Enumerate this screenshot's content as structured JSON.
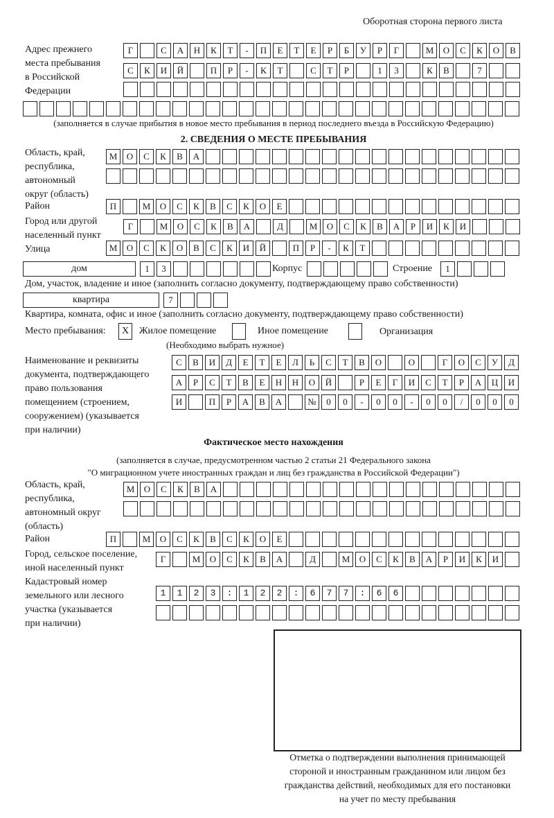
{
  "header": {
    "side_note": "Оборотная сторона первого листа"
  },
  "previous_address": {
    "label": "Адрес прежнего\nместа пребывания\nв Российской\nФедерации",
    "rows": [
      "Г САНКТ-ПЕТЕРБУРГ МОСКОВ",
      "СКИЙ ПР-КТ СТР 13 КВ 7",
      "",
      ""
    ],
    "note": "(заполняется в случае прибытия в новое место пребывания в период последнего въезда в Российскую Федерацию)"
  },
  "section2": {
    "heading": "2. СВЕДЕНИЯ О МЕСТЕ ПРЕБЫВАНИЯ",
    "region_label": "Область, край,\nреспублика,\nавтономный\nокруг (область)",
    "region_rows": [
      "МОСКВА",
      ""
    ],
    "district_label": "Район",
    "district": "П МОСКВСКОЕ",
    "city_label": "Город или другой\nнаселенный пункт",
    "city": "Г МОСКВА Д МОСКВАРИКИ",
    "street_label": "Улица",
    "street": "МОСКОВСКИЙ ПР-КТ",
    "house_type": "дом",
    "house": "13",
    "korpus_label": "Корпус",
    "korpus": "",
    "building_label": "Строение",
    "building": "1",
    "house_caption": "Дом, участок, владение и иное (заполнить согласно документу, подтверждающему право собственности)",
    "apartment_type": "квартира",
    "apartment": "7",
    "apartment_caption": "Квартира, комната, офис и иное (заполнить согласно документу, подтверждающему право собственности)",
    "stay_place_label": "Место пребывания:",
    "stay_options": [
      {
        "label": "Жилое помещение",
        "mark": "X",
        "checked": true
      },
      {
        "label": "Иное помещение",
        "mark": "",
        "checked": false
      },
      {
        "label": "Организация",
        "mark": "",
        "checked": false
      }
    ],
    "stay_hint": "(Необходимо выбрать нужное)",
    "doc_label": "Наименование и реквизиты\nдокумента, подтверждающего\nправо пользования\nпомещением (строением,\nсооружением) (указывается\nпри наличии)",
    "doc_rows": [
      "СВИДЕТЕЛЬСТВО О ГОСУД",
      "АРСТВЕННОЙ РЕГИСТРАЦИ",
      "И ПРАВА №00-00-00/000"
    ]
  },
  "actual": {
    "heading": "Фактическое место нахождения",
    "note1": "(заполняется в случае, предусмотренном частью 2 статьи 21 Федерального закона",
    "note2": "\"О миграционном учете иностранных граждан и лиц без гражданства в Российской Федерации\")",
    "region_label": "Область, край,\nреспублика,\nавтономный округ\n(область)",
    "region_rows": [
      "МОСКВА",
      ""
    ],
    "district_label": "Район",
    "district": "П МОСКВСКОЕ",
    "city_label": "Город, сельское поселение,\nиной населенный пункт",
    "city": "Г МОСКВА Д МОСКВАРИКИ",
    "cadastre_label": "Кадастровый номер\nземельного или лесного\nучастка (указывается\nпри наличии)",
    "cadastre_rows": [
      "1123:122:677:66",
      ""
    ]
  },
  "confirmation": {
    "caption": "Отметка о подтверждении выполнения принимающей\nстороной и иностранным гражданином или лицом без\nгражданства действий, необходимых для его постановки\nна учет по месту пребывания"
  }
}
